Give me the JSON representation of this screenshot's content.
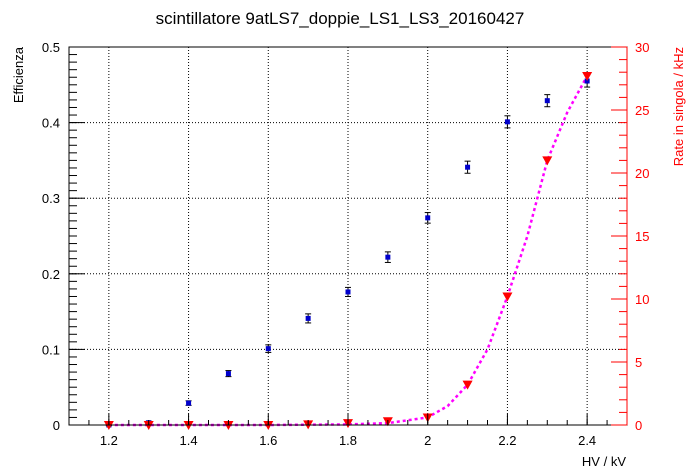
{
  "chart_data": {
    "type": "scatter",
    "title": "scintillatore 9atLS7_doppie_LS1_LS3_20160427",
    "xlabel": "HV / kV",
    "ylabel": "Efficienza",
    "y2label": "Rate in singola / kHz",
    "xlim": [
      1.1,
      2.5
    ],
    "ylim": [
      0,
      0.5
    ],
    "y2lim": [
      0,
      30
    ],
    "grid": true,
    "x_ticks": [
      "1.2",
      "1.4",
      "1.6",
      "1.8",
      "2",
      "2.2",
      "2.4"
    ],
    "y_ticks": [
      "0",
      "0.1",
      "0.2",
      "0.3",
      "0.4",
      "0.5"
    ],
    "y2_ticks": [
      "0",
      "5",
      "10",
      "15",
      "20",
      "25",
      "30"
    ],
    "series": [
      {
        "axis": "left",
        "color": "#0000cc",
        "marker": "square",
        "x": [
          1.2,
          1.3,
          1.4,
          1.5,
          1.6,
          1.7,
          1.8,
          1.9,
          2.0,
          2.1,
          2.2,
          2.3,
          2.4
        ],
        "y": [
          0.0,
          0.003,
          0.029,
          0.068,
          0.101,
          0.141,
          0.176,
          0.222,
          0.274,
          0.341,
          0.401,
          0.429,
          0.455
        ],
        "err": [
          0.001,
          0.002,
          0.003,
          0.004,
          0.005,
          0.006,
          0.006,
          0.007,
          0.007,
          0.008,
          0.008,
          0.008,
          0.008
        ]
      },
      {
        "axis": "right",
        "color": "#ff0000",
        "marker": "triangle-down",
        "x": [
          1.2,
          1.3,
          1.4,
          1.5,
          1.6,
          1.7,
          1.8,
          1.9,
          2.0,
          2.1,
          2.2,
          2.3,
          2.4
        ],
        "y": [
          0.0,
          0.0,
          0.0,
          0.0,
          0.0,
          0.05,
          0.15,
          0.3,
          0.6,
          3.2,
          10.2,
          21.0,
          27.7
        ]
      }
    ],
    "fit": {
      "axis": "right",
      "color": "#ff00ff",
      "style": "dashed",
      "x": [
        1.2,
        1.4,
        1.6,
        1.8,
        1.9,
        2.0,
        2.05,
        2.1,
        2.15,
        2.2,
        2.25,
        2.3,
        2.35,
        2.4
      ],
      "y": [
        0.0,
        0.0,
        0.0,
        0.05,
        0.15,
        0.6,
        1.5,
        3.2,
        6.0,
        10.2,
        15.0,
        21.0,
        24.8,
        27.7
      ]
    }
  }
}
